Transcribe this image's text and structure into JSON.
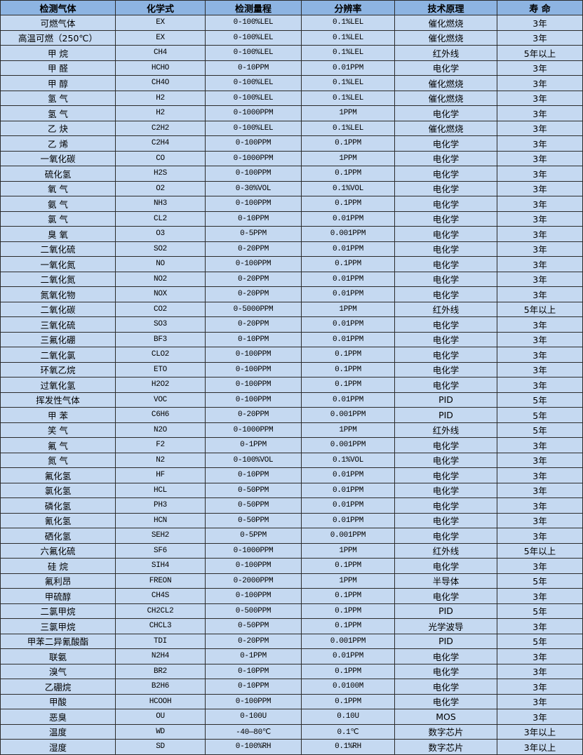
{
  "headers": [
    "检测气体",
    "化学式",
    "检测量程",
    "分辨率",
    "技术原理",
    "寿 命"
  ],
  "colors": {
    "header_bg": "#8db4e2",
    "row_bg": "#c5d9f1",
    "border": "#2b2b2b"
  },
  "rows": [
    [
      "可燃气体",
      "EX",
      "0-100%LEL",
      "0.1%LEL",
      "催化燃烧",
      "3年"
    ],
    [
      "高温可燃（250℃）",
      "EX",
      "0-100%LEL",
      "0.1%LEL",
      "催化燃烧",
      "3年"
    ],
    [
      "甲 烷",
      "CH4",
      "0-100%LEL",
      "0.1%LEL",
      "红外线",
      "5年以上"
    ],
    [
      "甲 醛",
      "HCHO",
      "0-10PPM",
      "0.01PPM",
      "电化学",
      "3年"
    ],
    [
      "甲 醇",
      "CH4O",
      "0-100%LEL",
      "0.1%LEL",
      "催化燃烧",
      "3年"
    ],
    [
      "氢 气",
      "H2",
      "0-100%LEL",
      "0.1%LEL",
      "催化燃烧",
      "3年"
    ],
    [
      "氢 气",
      "H2",
      "0-1000PPM",
      "1PPM",
      "电化学",
      "3年"
    ],
    [
      "乙 炔",
      "C2H2",
      "0-100%LEL",
      "0.1%LEL",
      "催化燃烧",
      "3年"
    ],
    [
      "乙 烯",
      "C2H4",
      "0-100PPM",
      "0.1PPM",
      "电化学",
      "3年"
    ],
    [
      "一氧化碳",
      "CO",
      "0-1000PPM",
      "1PPM",
      "电化学",
      "3年"
    ],
    [
      "硫化氢",
      "H2S",
      "0-100PPM",
      "0.1PPM",
      "电化学",
      "3年"
    ],
    [
      "氧 气",
      "O2",
      "0-30%VOL",
      "0.1%VOL",
      "电化学",
      "3年"
    ],
    [
      "氨 气",
      "NH3",
      "0-100PPM",
      "0.1PPM",
      "电化学",
      "3年"
    ],
    [
      "氯 气",
      "CL2",
      "0-10PPM",
      "0.01PPM",
      "电化学",
      "3年"
    ],
    [
      "臭 氧",
      "O3",
      "0-5PPM",
      "0.001PPM",
      "电化学",
      "3年"
    ],
    [
      "二氧化硫",
      "SO2",
      "0-20PPM",
      "0.01PPM",
      "电化学",
      "3年"
    ],
    [
      "一氧化氮",
      "NO",
      "0-100PPM",
      "0.1PPM",
      "电化学",
      "3年"
    ],
    [
      "二氧化氮",
      "NO2",
      "0-20PPM",
      "0.01PPM",
      "电化学",
      "3年"
    ],
    [
      "氮氧化物",
      "NOX",
      "0-20PPM",
      "0.01PPM",
      "电化学",
      "3年"
    ],
    [
      "二氧化碳",
      "CO2",
      "0-5000PPM",
      "1PPM",
      "红外线",
      "5年以上"
    ],
    [
      "三氧化硫",
      "SO3",
      "0-20PPM",
      "0.01PPM",
      "电化学",
      "3年"
    ],
    [
      "三氟化硼",
      "BF3",
      "0-10PPM",
      "0.01PPM",
      "电化学",
      "3年"
    ],
    [
      "二氧化氯",
      "CLO2",
      "0-100PPM",
      "0.1PPM",
      "电化学",
      "3年"
    ],
    [
      "环氧乙烷",
      "ETO",
      "0-100PPM",
      "0.1PPM",
      "电化学",
      "3年"
    ],
    [
      "过氧化氢",
      "H2O2",
      "0-100PPM",
      "0.1PPM",
      "电化学",
      "3年"
    ],
    [
      "挥发性气体",
      "VOC",
      "0-100PPM",
      "0.01PPM",
      "PID",
      "5年"
    ],
    [
      "甲 苯",
      "C6H6",
      "0-20PPM",
      "0.001PPM",
      "PID",
      "5年"
    ],
    [
      "笑 气",
      "N2O",
      "0-1000PPM",
      "1PPM",
      "红外线",
      "5年"
    ],
    [
      "氟 气",
      "F2",
      "0-1PPM",
      "0.001PPM",
      "电化学",
      "3年"
    ],
    [
      "氮 气",
      "N2",
      "0-100%VOL",
      "0.1%VOL",
      "电化学",
      "3年"
    ],
    [
      "氟化氢",
      "HF",
      "0-10PPM",
      "0.01PPM",
      "电化学",
      "3年"
    ],
    [
      "氯化氢",
      "HCL",
      "0-50PPM",
      "0.01PPM",
      "电化学",
      "3年"
    ],
    [
      "磷化氢",
      "PH3",
      "0-50PPM",
      "0.01PPM",
      "电化学",
      "3年"
    ],
    [
      "氰化氢",
      "HCN",
      "0-50PPM",
      "0.01PPM",
      "电化学",
      "3年"
    ],
    [
      "硒化氢",
      "SEH2",
      "0-5PPM",
      "0.001PPM",
      "电化学",
      "3年"
    ],
    [
      "六氟化硫",
      "SF6",
      "0-1000PPM",
      "1PPM",
      "红外线",
      "5年以上"
    ],
    [
      "硅 烷",
      "SIH4",
      "0-100PPM",
      "0.1PPM",
      "电化学",
      "3年"
    ],
    [
      "氟利昂",
      "FREON",
      "0-2000PPM",
      "1PPM",
      "半导体",
      "5年"
    ],
    [
      "甲硫醇",
      "CH4S",
      "0-100PPM",
      "0.1PPM",
      "电化学",
      "3年"
    ],
    [
      "二氯甲烷",
      "CH2CL2",
      "0-500PPM",
      "0.1PPM",
      "PID",
      "5年"
    ],
    [
      "三氯甲烷",
      "CHCL3",
      "0-50PPM",
      "0.1PPM",
      "光学波导",
      "3年"
    ],
    [
      "甲苯二异氰酸酯",
      "TDI",
      "0-20PPM",
      "0.001PPM",
      "PID",
      "5年"
    ],
    [
      "联氨",
      "N2H4",
      "0-1PPM",
      "0.01PPM",
      "电化学",
      "3年"
    ],
    [
      "溴气",
      "BR2",
      "0-10PPM",
      "0.1PPM",
      "电化学",
      "3年"
    ],
    [
      "乙硼烷",
      "B2H6",
      "0-10PPM",
      "0.0100M",
      "电化学",
      "3年"
    ],
    [
      "甲酸",
      "HCOOH",
      "0-100PPM",
      "0.1PPM",
      "电化学",
      "3年"
    ],
    [
      "恶臭",
      "OU",
      "0-100U",
      "0.10U",
      "MOS",
      "3年"
    ],
    [
      "温度",
      "WD",
      "-40—80℃",
      "0.1℃",
      "数字芯片",
      "3年以上"
    ],
    [
      "湿度",
      "SD",
      "0-100%RH",
      "0.1%RH",
      "数字芯片",
      "3年以上"
    ]
  ]
}
